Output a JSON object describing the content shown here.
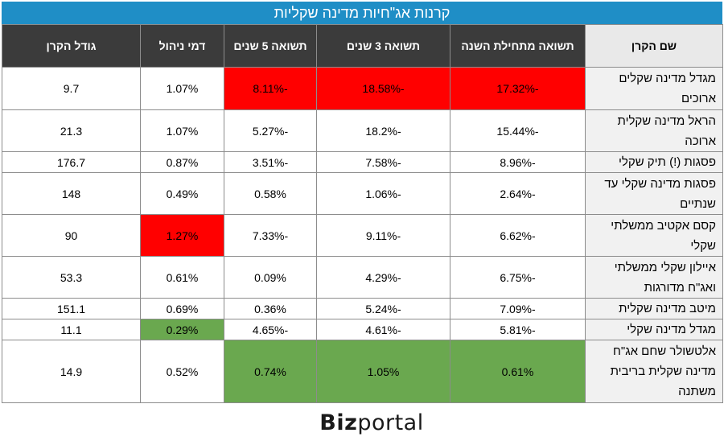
{
  "title": "קרנות אג\"חיות מדינה שקליות",
  "headers": {
    "name": "שם הקרן",
    "ytd": "תשואה מתחילת השנה",
    "y3": "תשואה 3 שנים",
    "y5": "תשואה 5 שנים",
    "fee": "דמי ניהול",
    "size": "גודל הקרן"
  },
  "rows": [
    {
      "name": "מגדל מדינה שקלים ארוכים",
      "ytd": "-17.32%",
      "y3": "-18.58%",
      "y5": "-8.11%",
      "fee": "1.07%",
      "size": "9.7"
    },
    {
      "name": "הראל מדינה שקלית ארוכה",
      "ytd": "-15.44%",
      "y3": "-18.2%",
      "y5": "-5.27%",
      "fee": "1.07%",
      "size": "21.3"
    },
    {
      "name": "פסגות (!) תיק שקלי",
      "ytd": "-8.96%",
      "y3": "-7.58%",
      "y5": "-3.51%",
      "fee": "0.87%",
      "size": "176.7"
    },
    {
      "name": "פסגות מדינה שקלי עד שנתיים",
      "ytd": "-2.64%",
      "y3": "-1.06%",
      "y5": "0.58%",
      "fee": "0.49%",
      "size": "148"
    },
    {
      "name": "קסם אקטיב ממשלתי שקלי",
      "ytd": "-6.62%",
      "y3": "-9.11%",
      "y5": "-7.33%",
      "fee": "1.27%",
      "size": "90"
    },
    {
      "name": "איילון שקלי ממשלתי ואג\"ח מדורגות",
      "ytd": "-6.75%",
      "y3": "-4.29%",
      "y5": "0.09%",
      "fee": "0.61%",
      "size": "53.3"
    },
    {
      "name": "מיטב מדינה שקלית",
      "ytd": "-7.09%",
      "y3": "-5.24%",
      "y5": "0.36%",
      "fee": "0.69%",
      "size": "151.1"
    },
    {
      "name": "מגדל מדינה שקלי",
      "ytd": "-5.81%",
      "y3": "-4.61%",
      "y5": "-4.65%",
      "fee": "0.29%",
      "size": "11.1"
    },
    {
      "name": "אלטשולר שחם אג\"ח מדינה שקלית בריבית משתנה",
      "ytd": "0.61%",
      "y3": "1.05%",
      "y5": "0.74%",
      "fee": "0.52%",
      "size": "14.9"
    }
  ],
  "highlight_colors": {
    "red": "#ff0000",
    "green": "#6aa84f"
  },
  "logo": {
    "part1": "Biz",
    "part2": "portal"
  }
}
